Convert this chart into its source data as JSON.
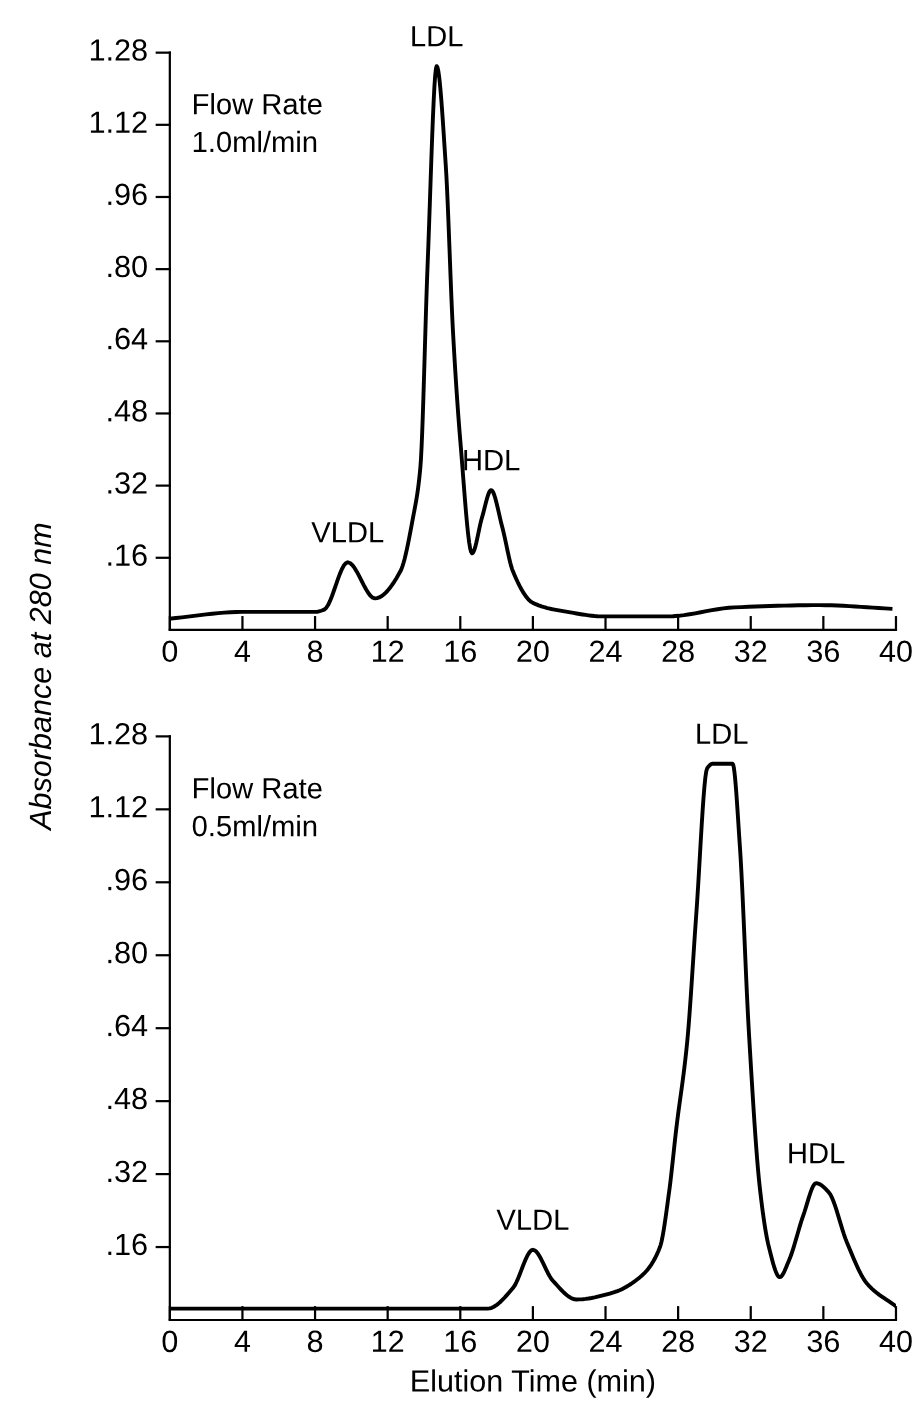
{
  "chart_data": [
    {
      "type": "line",
      "ylabel": "Absorbance at 280 nm",
      "xlim": [
        0,
        40
      ],
      "ylim": [
        0,
        1.28
      ],
      "xticks": [
        0,
        4,
        8,
        12,
        16,
        20,
        24,
        28,
        32,
        36,
        40
      ],
      "yticks": [
        {
          "value": 0.16,
          "label": ".16"
        },
        {
          "value": 0.32,
          "label": ".32"
        },
        {
          "value": 0.48,
          "label": ".48"
        },
        {
          "value": 0.64,
          "label": ".64"
        },
        {
          "value": 0.8,
          "label": ".80"
        },
        {
          "value": 0.96,
          "label": ".96"
        },
        {
          "value": 1.12,
          "label": "1.12"
        },
        {
          "value": 1.28,
          "label": "1.28"
        }
      ],
      "grid": false,
      "legend": false,
      "marker": "none",
      "line_style": "solid",
      "annotations": [
        "Flow Rate\n1.0ml/min",
        {
          "text": "VLDL",
          "x": 9.8,
          "y": 0.15
        },
        {
          "text": "LDL",
          "x": 14.7,
          "y": 1.25
        },
        {
          "text": "HDL",
          "x": 17.7,
          "y": 0.31
        }
      ],
      "series": [
        {
          "color": "#000000",
          "x": [
            0,
            4,
            8,
            8.5,
            9.8,
            11.3,
            12.7,
            13.4,
            13.8,
            14.2,
            14.7,
            15.2,
            15.6,
            16.0,
            16.65,
            17.2,
            17.7,
            18.3,
            18.9,
            20.0,
            21.9,
            23.9,
            27.4,
            31.1,
            35.8,
            39.7
          ],
          "values": [
            0.025,
            0.04,
            0.04,
            0.045,
            0.15,
            0.07,
            0.13,
            0.25,
            0.36,
            0.81,
            1.25,
            1.03,
            0.66,
            0.42,
            0.17,
            0.25,
            0.31,
            0.23,
            0.13,
            0.06,
            0.04,
            0.03,
            0.03,
            0.05,
            0.055,
            0.047
          ]
        }
      ]
    },
    {
      "type": "line",
      "xlabel": "Elution Time (min)",
      "xlim": [
        0,
        40
      ],
      "ylim": [
        0,
        1.28
      ],
      "xticks": [
        0,
        4,
        8,
        12,
        16,
        20,
        24,
        28,
        32,
        36,
        40
      ],
      "yticks": [
        {
          "value": 0.16,
          "label": ".16"
        },
        {
          "value": 0.32,
          "label": ".32"
        },
        {
          "value": 0.48,
          "label": ".48"
        },
        {
          "value": 0.64,
          "label": ".64"
        },
        {
          "value": 0.8,
          "label": ".80"
        },
        {
          "value": 0.96,
          "label": ".96"
        },
        {
          "value": 1.12,
          "label": "1.12"
        },
        {
          "value": 1.28,
          "label": "1.28"
        }
      ],
      "grid": false,
      "legend": false,
      "marker": "none",
      "line_style": "solid",
      "annotations": [
        "Flow Rate\n0.5ml/min",
        {
          "text": "VLDL",
          "x": 20.0,
          "y": 0.154
        },
        {
          "text": "LDL",
          "x": 30.4,
          "y": 1.22
        },
        {
          "text": "HDL",
          "x": 35.6,
          "y": 0.3
        }
      ],
      "series": [
        {
          "color": "#000000",
          "x": [
            0,
            17.5,
            18.9,
            20.0,
            21.1,
            22.4,
            24.4,
            25.9,
            27.0,
            27.5,
            27.9,
            28.5,
            29.0,
            29.6,
            29.9,
            31.0,
            31.4,
            31.9,
            32.5,
            33.0,
            33.6,
            34.1,
            34.9,
            35.6,
            36.3,
            37.3,
            38.4,
            40
          ],
          "values": [
            0.025,
            0.025,
            0.07,
            0.154,
            0.086,
            0.045,
            0.06,
            0.094,
            0.16,
            0.28,
            0.42,
            0.61,
            0.89,
            1.21,
            1.22,
            1.22,
            1.04,
            0.63,
            0.29,
            0.16,
            0.094,
            0.13,
            0.23,
            0.3,
            0.28,
            0.17,
            0.08,
            0.03
          ]
        }
      ]
    }
  ]
}
